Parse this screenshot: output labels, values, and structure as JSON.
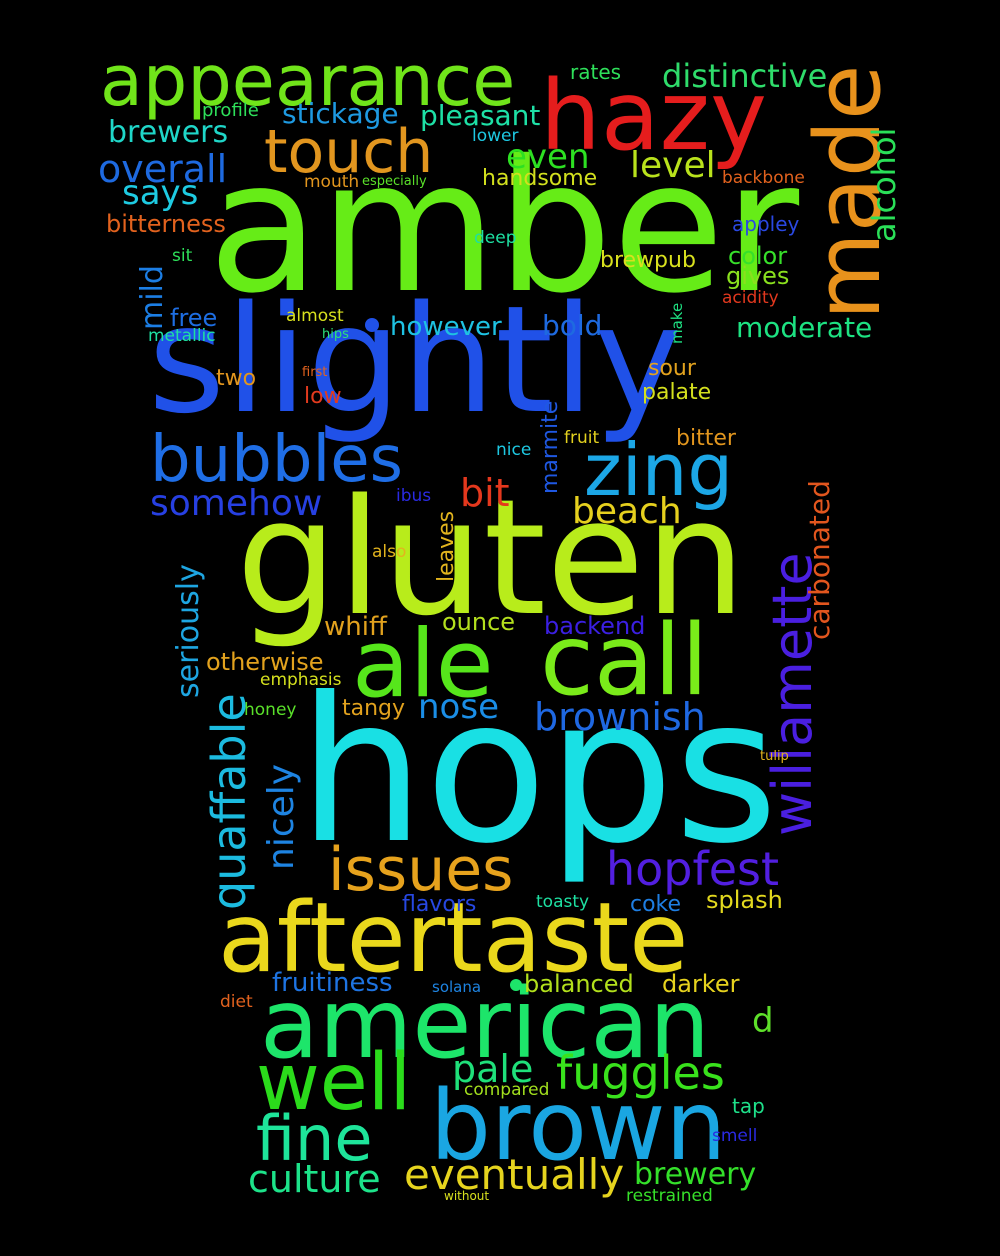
{
  "words": [
    {
      "text": "hops",
      "color": "#19e0e4"
    },
    {
      "text": "amber",
      "color": "#66ec17"
    },
    {
      "text": "gluten",
      "color": "#b8ec1b"
    },
    {
      "text": "slightly",
      "color": "#2051e8"
    },
    {
      "text": "aftertaste",
      "color": "#ead81c"
    },
    {
      "text": "american",
      "color": "#1de56a"
    },
    {
      "text": "brown",
      "color": "#1aa6e2"
    },
    {
      "text": "call",
      "color": "#7aeb1a"
    },
    {
      "text": "ale",
      "color": "#56e61b"
    },
    {
      "text": "hazy",
      "color": "#e51d1d"
    },
    {
      "text": "made",
      "color": "#e8921c"
    },
    {
      "text": "appearance",
      "color": "#70e41a"
    },
    {
      "text": "zing",
      "color": "#1ca7e6"
    },
    {
      "text": "well",
      "color": "#2bdc1b"
    },
    {
      "text": "bubbles",
      "color": "#1f6ee6"
    },
    {
      "text": "willamette",
      "color": "#4a1fe0"
    },
    {
      "text": "touch",
      "color": "#e2961f"
    },
    {
      "text": "issues",
      "color": "#e6a21d"
    },
    {
      "text": "fine",
      "color": "#1ee49a"
    },
    {
      "text": "hopfest",
      "color": "#521fe0"
    },
    {
      "text": "quaffable",
      "color": "#1cbbe0"
    },
    {
      "text": "fuggles",
      "color": "#39e21c"
    },
    {
      "text": "eventually",
      "color": "#e6d41e"
    },
    {
      "text": "culture",
      "color": "#1de38a"
    },
    {
      "text": "brownish",
      "color": "#1f68e2"
    },
    {
      "text": "beach",
      "color": "#e6d01e"
    },
    {
      "text": "somehow",
      "color": "#2740e2"
    },
    {
      "text": "overall",
      "color": "#1e6ae0"
    },
    {
      "text": "brewers",
      "color": "#1fd6c8"
    },
    {
      "text": "distinctive",
      "color": "#2fdc6b"
    },
    {
      "text": "level",
      "color": "#b9e21c"
    },
    {
      "text": "nicely",
      "color": "#1e84e2"
    },
    {
      "text": "seriously",
      "color": "#1ea6e2"
    },
    {
      "text": "bit",
      "color": "#e4381d"
    },
    {
      "text": "alcohol",
      "color": "#2ae058"
    },
    {
      "text": "carbonated",
      "color": "#e2561e"
    },
    {
      "text": "nose",
      "color": "#1b8ee6"
    },
    {
      "text": "pale",
      "color": "#1fe07a"
    },
    {
      "text": "brewery",
      "color": "#34e02a"
    },
    {
      "text": "even",
      "color": "#2de022"
    },
    {
      "text": "says",
      "color": "#1ecbe2"
    },
    {
      "text": "mild",
      "color": "#1c7ee4"
    },
    {
      "text": "pleasant",
      "color": "#1ee0a6"
    },
    {
      "text": "stickage",
      "color": "#1e9ae2"
    },
    {
      "text": "moderate",
      "color": "#1de282"
    },
    {
      "text": "fruitiness",
      "color": "#1e74e2"
    },
    {
      "text": "balanced",
      "color": "#b2e01c"
    },
    {
      "text": "darker",
      "color": "#e6d21e"
    },
    {
      "text": "however",
      "color": "#1ec2e2"
    },
    {
      "text": "bold",
      "color": "#1e6ae0"
    },
    {
      "text": "marmite",
      "color": "#1f58e2"
    },
    {
      "text": "leaves",
      "color": "#e2b41e"
    },
    {
      "text": "bitterness",
      "color": "#e2621e"
    },
    {
      "text": "handsome",
      "color": "#d2e01e"
    },
    {
      "text": "whiff",
      "color": "#e2a21e"
    },
    {
      "text": "backend",
      "color": "#3b1fe2"
    },
    {
      "text": "otherwise",
      "color": "#e2a21e"
    },
    {
      "text": "tangy",
      "color": "#e2a21e"
    },
    {
      "text": "ounce",
      "color": "#b4e01e"
    },
    {
      "text": "splash",
      "color": "#e2d81e"
    },
    {
      "text": "flavors",
      "color": "#2748e2"
    },
    {
      "text": "coke",
      "color": "#1e7ee2"
    },
    {
      "text": "color",
      "color": "#37e02a"
    },
    {
      "text": "gives",
      "color": "#8ae01e"
    },
    {
      "text": "brewpub",
      "color": "#d8e01e"
    },
    {
      "text": "bitter",
      "color": "#e2961e"
    },
    {
      "text": "sour",
      "color": "#e2a21e"
    },
    {
      "text": "palate",
      "color": "#d4e01e"
    },
    {
      "text": "free",
      "color": "#1e6ee2"
    },
    {
      "text": "two",
      "color": "#e2961e"
    },
    {
      "text": "low",
      "color": "#e23a1e"
    },
    {
      "text": "rates",
      "color": "#2ee05a"
    },
    {
      "text": "tap",
      "color": "#1ee08a"
    },
    {
      "text": "d",
      "color": "#5ee02a"
    },
    {
      "text": "appley",
      "color": "#2a48e2"
    },
    {
      "text": "backbone",
      "color": "#e2621e"
    },
    {
      "text": "acidity",
      "color": "#e2381e"
    },
    {
      "text": "profile",
      "color": "#2ee05a"
    },
    {
      "text": "lower",
      "color": "#1ec8e2"
    },
    {
      "text": "mouth",
      "color": "#e2961e"
    },
    {
      "text": "especially",
      "color": "#5ae02a"
    },
    {
      "text": "deep",
      "color": "#1ee0a2"
    },
    {
      "text": "sit",
      "color": "#2ee05a"
    },
    {
      "text": "almost",
      "color": "#d8e01e"
    },
    {
      "text": "hips",
      "color": "#2ee07a"
    },
    {
      "text": "metallic",
      "color": "#1ee0a2"
    },
    {
      "text": "first",
      "color": "#e2621e"
    },
    {
      "text": "make",
      "color": "#1ee082"
    },
    {
      "text": "nice",
      "color": "#1ec8e2"
    },
    {
      "text": "fruit",
      "color": "#e2d01e"
    },
    {
      "text": "ibus",
      "color": "#2a2ae2"
    },
    {
      "text": "also",
      "color": "#e2b41e"
    },
    {
      "text": "emphasis",
      "color": "#d4e01e"
    },
    {
      "text": "honey",
      "color": "#5ae02a"
    },
    {
      "text": "tulip",
      "color": "#e2b41e"
    },
    {
      "text": "toasty",
      "color": "#1ee0a2"
    },
    {
      "text": "solana",
      "color": "#1e84e2"
    },
    {
      "text": "diet",
      "color": "#e2621e"
    },
    {
      "text": "compared",
      "color": "#a2e01e"
    },
    {
      "text": "smell",
      "color": "#2a2ae2"
    },
    {
      "text": "without",
      "color": "#d8e01e"
    },
    {
      "text": "restrained",
      "color": "#37e02a"
    }
  ]
}
